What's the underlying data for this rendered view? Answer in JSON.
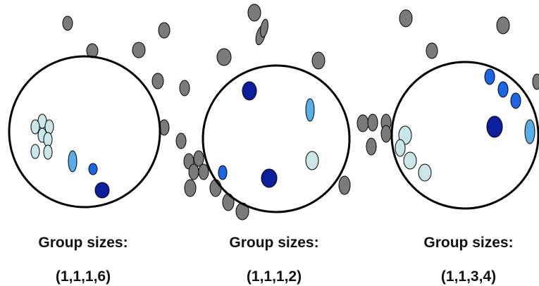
{
  "panels": [
    {
      "heading": "Group sizes:",
      "sizes": "(1,1,1,6)"
    },
    {
      "heading": "Group sizes:",
      "sizes": "(1,1,1,2)"
    },
    {
      "heading": "Group sizes:",
      "sizes": "(1,1,3,4)"
    }
  ],
  "colors": {
    "outside": "#7a7a7a",
    "light": "#c9e6ea",
    "medium": "#5aaee8",
    "bright": "#1a66e6",
    "dark": "#0b1f9c",
    "stroke": "#000000"
  }
}
